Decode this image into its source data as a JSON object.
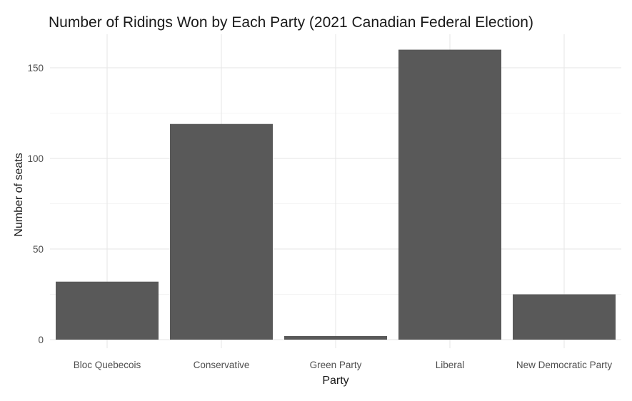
{
  "chart_data": {
    "type": "bar",
    "title": "Number of Ridings Won by Each Party (2021 Canadian Federal Election)",
    "xlabel": "Party",
    "ylabel": "Number of seats",
    "categories": [
      "Bloc Quebecois",
      "Conservative",
      "Green Party",
      "Liberal",
      "New Democratic Party"
    ],
    "values": [
      32,
      119,
      2,
      160,
      25
    ],
    "ylim": [
      0,
      160
    ],
    "yticks": [
      0,
      50,
      100,
      150
    ],
    "grid": true,
    "bar_color": "#595959",
    "legend": "none"
  }
}
